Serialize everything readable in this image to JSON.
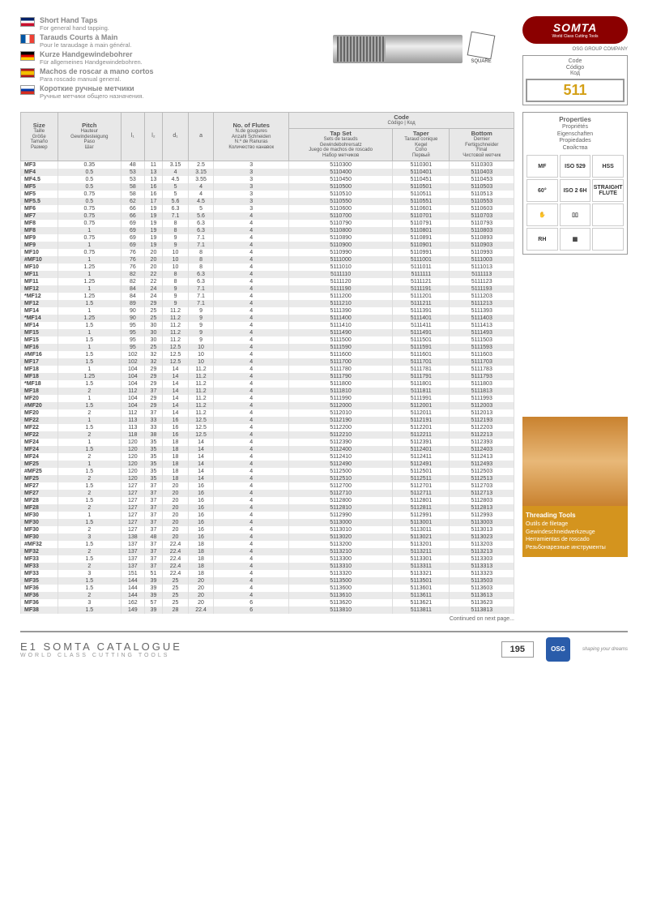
{
  "langs": [
    {
      "flag": "en",
      "title": "Short Hand Taps",
      "sub": "For general hand tapping."
    },
    {
      "flag": "fr",
      "title": "Tarauds Courts à Main",
      "sub": "Pour le taraudage à main général."
    },
    {
      "flag": "de",
      "title": "Kurze Handgewindebohrer",
      "sub": "Für allgemeines Handgewindebohren."
    },
    {
      "flag": "es",
      "title": "Machos de roscar a mano cortos",
      "sub": "Para roscado manual general."
    },
    {
      "flag": "ru",
      "title": "Короткие ручные метчики",
      "sub": "Ручные метчики общего назначения."
    }
  ],
  "logo": {
    "main": "SOMTA",
    "sub": "World Class Cutting Tools"
  },
  "osg": "OSG GROUP COMPANY",
  "code": {
    "labels": [
      "Code",
      "Código",
      "Код"
    ],
    "num": "511"
  },
  "headers": {
    "size": [
      "Size",
      "Taille",
      "Größe",
      "Tamaño",
      "Размер"
    ],
    "pitch": [
      "Pitch",
      "Hauteur",
      "Gewindesteigung",
      "Paso",
      "Шаг"
    ],
    "l1": "l₁",
    "l2": "l₂",
    "d1": "d₁",
    "a": "a",
    "flutes": [
      "No. of Flutes",
      "N.de gougures",
      "Anzahl Schneiden",
      "N.º de Ranuras",
      "Количество канавок"
    ],
    "codeh": [
      "Code",
      "Código | Код"
    ],
    "tapset": [
      "Tap Set",
      "Sets de tarauds",
      "Gewindebohrersatz",
      "Juego de machos de roscado",
      "Набор метчиков"
    ],
    "taper": [
      "Taper",
      "Taraud conique",
      "Kegel",
      "Cono",
      "Первый"
    ],
    "bottom": [
      "Bottom",
      "Dernier",
      "Fertigschneider",
      "Final",
      "Чистовой метчик"
    ]
  },
  "rows": [
    [
      "MF3",
      "0.35",
      "48",
      "11",
      "3.15",
      "2.5",
      "3",
      "5110300",
      "5110301",
      "5110303"
    ],
    [
      "MF4",
      "0.5",
      "53",
      "13",
      "4",
      "3.15",
      "3",
      "5110400",
      "5110401",
      "5110403"
    ],
    [
      "MF4.5",
      "0.5",
      "53",
      "13",
      "4.5",
      "3.55",
      "3",
      "5110450",
      "5110451",
      "5110453"
    ],
    [
      "MF5",
      "0.5",
      "58",
      "16",
      "5",
      "4",
      "3",
      "5110500",
      "5110501",
      "5110503"
    ],
    [
      "MF5",
      "0.75",
      "58",
      "16",
      "5",
      "4",
      "3",
      "5110510",
      "5110511",
      "5110513"
    ],
    [
      "MF5.5",
      "0.5",
      "62",
      "17",
      "5.6",
      "4.5",
      "3",
      "5110550",
      "5110551",
      "5110553"
    ],
    [
      "MF6",
      "0.75",
      "66",
      "19",
      "6.3",
      "5",
      "3",
      "5110600",
      "5110601",
      "5110603"
    ],
    [
      "MF7",
      "0.75",
      "66",
      "19",
      "7.1",
      "5.6",
      "4",
      "5110700",
      "5110701",
      "5110703"
    ],
    [
      "MF8",
      "0.75",
      "69",
      "19",
      "8",
      "6.3",
      "4",
      "5110790",
      "5110791",
      "5110793"
    ],
    [
      "MF8",
      "1",
      "69",
      "19",
      "8",
      "6.3",
      "4",
      "5110800",
      "5110801",
      "5110803"
    ],
    [
      "MF9",
      "0.75",
      "69",
      "19",
      "9",
      "7.1",
      "4",
      "5110890",
      "5110891",
      "5110893"
    ],
    [
      "MF9",
      "1",
      "69",
      "19",
      "9",
      "7.1",
      "4",
      "5110900",
      "5110901",
      "5110903"
    ],
    [
      "MF10",
      "0.75",
      "76",
      "20",
      "10",
      "8",
      "4",
      "5110990",
      "5110991",
      "5110993"
    ],
    [
      "#MF10",
      "1",
      "76",
      "20",
      "10",
      "8",
      "4",
      "5111000",
      "5111001",
      "5111003"
    ],
    [
      "MF10",
      "1.25",
      "76",
      "20",
      "10",
      "8",
      "4",
      "5111010",
      "5111011",
      "5111013"
    ],
    [
      "MF11",
      "1",
      "82",
      "22",
      "8",
      "6.3",
      "4",
      "5111110",
      "5111111",
      "5111113"
    ],
    [
      "MF11",
      "1.25",
      "82",
      "22",
      "8",
      "6.3",
      "4",
      "5111120",
      "5111121",
      "5111123"
    ],
    [
      "MF12",
      "1",
      "84",
      "24",
      "9",
      "7.1",
      "4",
      "5111190",
      "5111191",
      "5111193"
    ],
    [
      "*MF12",
      "1.25",
      "84",
      "24",
      "9",
      "7.1",
      "4",
      "5111200",
      "5111201",
      "5111203"
    ],
    [
      "MF12",
      "1.5",
      "89",
      "29",
      "9",
      "7.1",
      "4",
      "5111210",
      "5111211",
      "5111213"
    ],
    [
      "MF14",
      "1",
      "90",
      "25",
      "11.2",
      "9",
      "4",
      "5111390",
      "5111391",
      "5111393"
    ],
    [
      "*MF14",
      "1.25",
      "90",
      "25",
      "11.2",
      "9",
      "4",
      "5111400",
      "5111401",
      "5111403"
    ],
    [
      "MF14",
      "1.5",
      "95",
      "30",
      "11.2",
      "9",
      "4",
      "5111410",
      "5111411",
      "5111413"
    ],
    [
      "MF15",
      "1",
      "95",
      "30",
      "11.2",
      "9",
      "4",
      "5111490",
      "5111491",
      "5111493"
    ],
    [
      "MF15",
      "1.5",
      "95",
      "30",
      "11.2",
      "9",
      "4",
      "5111500",
      "5111501",
      "5111503"
    ],
    [
      "MF16",
      "1",
      "95",
      "25",
      "12.5",
      "10",
      "4",
      "5111590",
      "5111591",
      "5111593"
    ],
    [
      "#MF16",
      "1.5",
      "102",
      "32",
      "12.5",
      "10",
      "4",
      "5111600",
      "5111601",
      "5111603"
    ],
    [
      "MF17",
      "1.5",
      "102",
      "32",
      "12.5",
      "10",
      "4",
      "5111700",
      "5111701",
      "5111703"
    ],
    [
      "MF18",
      "1",
      "104",
      "29",
      "14",
      "11.2",
      "4",
      "5111780",
      "5111781",
      "5111783"
    ],
    [
      "MF18",
      "1.25",
      "104",
      "29",
      "14",
      "11.2",
      "4",
      "5111790",
      "5111791",
      "5111793"
    ],
    [
      "*MF18",
      "1.5",
      "104",
      "29",
      "14",
      "11.2",
      "4",
      "5111800",
      "5111801",
      "5111803"
    ],
    [
      "MF18",
      "2",
      "112",
      "37",
      "14",
      "11.2",
      "4",
      "5111810",
      "5111811",
      "5111813"
    ],
    [
      "MF20",
      "1",
      "104",
      "29",
      "14",
      "11.2",
      "4",
      "5111990",
      "5111991",
      "5111993"
    ],
    [
      "#MF20",
      "1.5",
      "104",
      "29",
      "14",
      "11.2",
      "4",
      "5112000",
      "5112001",
      "5112003"
    ],
    [
      "MF20",
      "2",
      "112",
      "37",
      "14",
      "11.2",
      "4",
      "5112010",
      "5112011",
      "5112013"
    ],
    [
      "MF22",
      "1",
      "113",
      "33",
      "16",
      "12.5",
      "4",
      "5112190",
      "5112191",
      "5112193"
    ],
    [
      "MF22",
      "1.5",
      "113",
      "33",
      "16",
      "12.5",
      "4",
      "5112200",
      "5112201",
      "5112203"
    ],
    [
      "MF22",
      "2",
      "118",
      "38",
      "16",
      "12.5",
      "4",
      "5112210",
      "5112211",
      "5112213"
    ],
    [
      "MF24",
      "1",
      "120",
      "35",
      "18",
      "14",
      "4",
      "5112390",
      "5112391",
      "5112393"
    ],
    [
      "MF24",
      "1.5",
      "120",
      "35",
      "18",
      "14",
      "4",
      "5112400",
      "5112401",
      "5112403"
    ],
    [
      "MF24",
      "2",
      "120",
      "35",
      "18",
      "14",
      "4",
      "5112410",
      "5112411",
      "5112413"
    ],
    [
      "MF25",
      "1",
      "120",
      "35",
      "18",
      "14",
      "4",
      "5112490",
      "5112491",
      "5112493"
    ],
    [
      "#MF25",
      "1.5",
      "120",
      "35",
      "18",
      "14",
      "4",
      "5112500",
      "5112501",
      "5112503"
    ],
    [
      "MF25",
      "2",
      "120",
      "35",
      "18",
      "14",
      "4",
      "5112510",
      "5112511",
      "5112513"
    ],
    [
      "MF27",
      "1.5",
      "127",
      "37",
      "20",
      "16",
      "4",
      "5112700",
      "5112701",
      "5112703"
    ],
    [
      "MF27",
      "2",
      "127",
      "37",
      "20",
      "16",
      "4",
      "5112710",
      "5112711",
      "5112713"
    ],
    [
      "MF28",
      "1.5",
      "127",
      "37",
      "20",
      "16",
      "4",
      "5112800",
      "5112801",
      "5112803"
    ],
    [
      "MF28",
      "2",
      "127",
      "37",
      "20",
      "16",
      "4",
      "5112810",
      "5112811",
      "5112813"
    ],
    [
      "MF30",
      "1",
      "127",
      "37",
      "20",
      "16",
      "4",
      "5112990",
      "5112991",
      "5112993"
    ],
    [
      "MF30",
      "1.5",
      "127",
      "37",
      "20",
      "16",
      "4",
      "5113000",
      "5113001",
      "5113003"
    ],
    [
      "MF30",
      "2",
      "127",
      "37",
      "20",
      "16",
      "4",
      "5113010",
      "5113011",
      "5113013"
    ],
    [
      "MF30",
      "3",
      "138",
      "48",
      "20",
      "16",
      "4",
      "5113020",
      "5113021",
      "5113023"
    ],
    [
      "#MF32",
      "1.5",
      "137",
      "37",
      "22.4",
      "18",
      "4",
      "5113200",
      "5113201",
      "5113203"
    ],
    [
      "MF32",
      "2",
      "137",
      "37",
      "22.4",
      "18",
      "4",
      "5113210",
      "5113211",
      "5113213"
    ],
    [
      "MF33",
      "1.5",
      "137",
      "37",
      "22.4",
      "18",
      "4",
      "5113300",
      "5113301",
      "5113303"
    ],
    [
      "MF33",
      "2",
      "137",
      "37",
      "22.4",
      "18",
      "4",
      "5113310",
      "5113311",
      "5113313"
    ],
    [
      "MF33",
      "3",
      "151",
      "51",
      "22.4",
      "18",
      "4",
      "5113320",
      "5113321",
      "5113323"
    ],
    [
      "MF35",
      "1.5",
      "144",
      "39",
      "25",
      "20",
      "4",
      "5113500",
      "5113501",
      "5113503"
    ],
    [
      "MF36",
      "1.5",
      "144",
      "39",
      "25",
      "20",
      "4",
      "5113600",
      "5113601",
      "5113603"
    ],
    [
      "MF36",
      "2",
      "144",
      "39",
      "25",
      "20",
      "4",
      "5113610",
      "5113611",
      "5113613"
    ],
    [
      "MF36",
      "3",
      "162",
      "57",
      "25",
      "20",
      "6",
      "5113620",
      "5113621",
      "5113623"
    ],
    [
      "MF38",
      "1.5",
      "149",
      "39",
      "28",
      "22.4",
      "6",
      "5113810",
      "5113811",
      "5113813"
    ]
  ],
  "props": {
    "title": [
      "Properties",
      "Propriétés",
      "Eigenschaften",
      "Propiedades",
      "Свойства"
    ],
    "cells": [
      "MF",
      "ISO 529",
      "HSS",
      "60°",
      "ISO 2 6H",
      "STRAIGHT FLUTE",
      "✋",
      "▯▯",
      "",
      "RH",
      "▦",
      ""
    ]
  },
  "thread": {
    "title": "Threading Tools",
    "lines": [
      "Outils de filetage",
      "Gewindeschneidwerkzeuge",
      "Herramientas de roscado",
      "Резьбонарезные инструменты"
    ]
  },
  "continued": "Continued on next page...",
  "footer": {
    "main": "E1 SOMTA CATALOGUE",
    "sub": "WORLD CLASS CUTTING TOOLS",
    "page": "195",
    "osg": "OSG",
    "tag": "shaping your dreams"
  }
}
